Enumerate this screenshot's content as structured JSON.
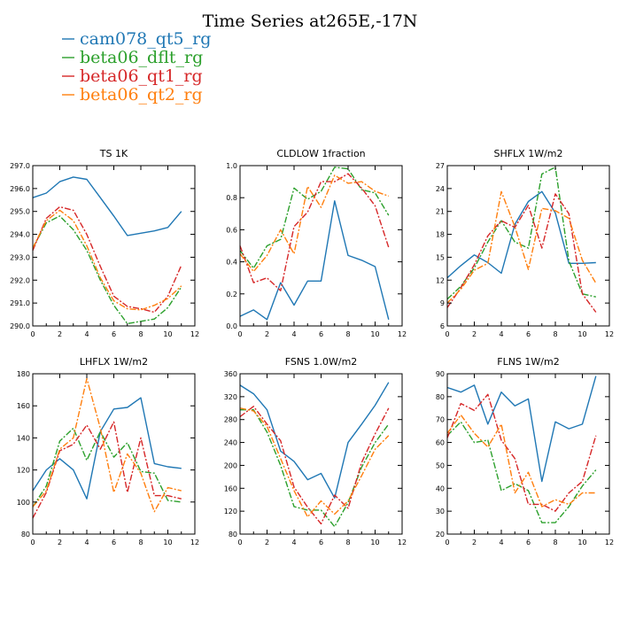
{
  "title": "Time Series at265E,-17N",
  "legend": [
    {
      "name": "cam078_qt5_rg",
      "color": "#1f77b4",
      "dash": "solid"
    },
    {
      "name": "beta06_dflt_rg",
      "color": "#2ca02c",
      "dash": "dashdot"
    },
    {
      "name": "beta06_qt1_rg",
      "color": "#d62728",
      "dash": "dashdot"
    },
    {
      "name": "beta06_qt2_rg",
      "color": "#ff7f0e",
      "dash": "dashdot"
    }
  ],
  "chart_data": [
    {
      "type": "line",
      "title": "TS   1K",
      "x": [
        0,
        1,
        2,
        3,
        4,
        5,
        6,
        7,
        8,
        9,
        10,
        11
      ],
      "xlim": [
        0,
        12
      ],
      "xticks": [
        "0",
        "2",
        "4",
        "6",
        "8",
        "10",
        "12"
      ],
      "ylim": [
        290,
        297
      ],
      "yticks": [
        "290.0",
        "291.0",
        "292.0",
        "293.0",
        "294.0",
        "295.0",
        "296.0",
        "297.0"
      ],
      "series": [
        {
          "name": "cam078_qt5_rg",
          "values": [
            295.6,
            295.8,
            296.3,
            296.5,
            296.4,
            295.6,
            294.8,
            293.95,
            294.05,
            294.15,
            294.3,
            295.0
          ]
        },
        {
          "name": "beta06_dflt_rg",
          "values": [
            293.4,
            294.5,
            294.8,
            294.2,
            293.3,
            292.0,
            290.9,
            290.1,
            290.2,
            290.3,
            290.8,
            291.7
          ]
        },
        {
          "name": "beta06_qt1_rg",
          "values": [
            293.3,
            294.7,
            295.2,
            295.05,
            294.0,
            292.6,
            291.3,
            290.85,
            290.75,
            290.6,
            291.3,
            292.65
          ]
        },
        {
          "name": "beta06_qt2_rg",
          "values": [
            293.4,
            294.6,
            295.05,
            294.6,
            293.5,
            292.1,
            291.1,
            290.75,
            290.7,
            290.9,
            291.2,
            291.75
          ]
        }
      ]
    },
    {
      "type": "line",
      "title": "CLDLOW   1fraction",
      "x": [
        0,
        1,
        2,
        3,
        4,
        5,
        6,
        7,
        8,
        9,
        10,
        11
      ],
      "xlim": [
        0,
        12
      ],
      "xticks": [
        "0",
        "2",
        "4",
        "6",
        "8",
        "10",
        "12"
      ],
      "ylim": [
        0,
        1
      ],
      "yticks": [
        "0.0",
        "0.2",
        "0.4",
        "0.6",
        "0.8",
        "1.0"
      ],
      "series": [
        {
          "name": "cam078_qt5_rg",
          "values": [
            0.06,
            0.1,
            0.04,
            0.27,
            0.13,
            0.28,
            0.28,
            0.78,
            0.44,
            0.41,
            0.37,
            0.04
          ]
        },
        {
          "name": "beta06_dflt_rg",
          "values": [
            0.47,
            0.36,
            0.5,
            0.54,
            0.86,
            0.79,
            0.84,
            0.99,
            0.98,
            0.85,
            0.83,
            0.69
          ]
        },
        {
          "name": "beta06_qt1_rg",
          "values": [
            0.5,
            0.27,
            0.3,
            0.22,
            0.62,
            0.71,
            0.9,
            0.9,
            0.95,
            0.86,
            0.75,
            0.49
          ]
        },
        {
          "name": "beta06_qt2_rg",
          "values": [
            0.45,
            0.34,
            0.44,
            0.6,
            0.45,
            0.87,
            0.74,
            0.94,
            0.89,
            0.9,
            0.84,
            0.81
          ]
        }
      ]
    },
    {
      "type": "line",
      "title": "SHFLX   1W/m2",
      "x": [
        0,
        1,
        2,
        3,
        4,
        5,
        6,
        7,
        8,
        9,
        10,
        11
      ],
      "xlim": [
        0,
        12
      ],
      "xticks": [
        "0",
        "2",
        "4",
        "6",
        "8",
        "10",
        "12"
      ],
      "ylim": [
        6,
        27
      ],
      "yticks": [
        "6",
        "9",
        "12",
        "15",
        "18",
        "21",
        "24",
        "27"
      ],
      "series": [
        {
          "name": "cam078_qt5_rg",
          "values": [
            12.3,
            13.9,
            15.3,
            14.3,
            12.9,
            19.3,
            22.3,
            23.6,
            20.8,
            14.2,
            14.2,
            14.3
          ]
        },
        {
          "name": "beta06_dflt_rg",
          "values": [
            9.5,
            11.2,
            13.6,
            17.0,
            19.8,
            17.0,
            16.2,
            25.9,
            26.8,
            14.5,
            10.2,
            9.8
          ]
        },
        {
          "name": "beta06_qt1_rg",
          "values": [
            8.4,
            11.0,
            14.0,
            17.8,
            19.8,
            18.9,
            21.8,
            16.2,
            23.3,
            20.7,
            10.2,
            7.8
          ]
        },
        {
          "name": "beta06_qt2_rg",
          "values": [
            9.0,
            10.8,
            13.3,
            14.2,
            23.6,
            19.0,
            13.4,
            21.4,
            21.1,
            20.1,
            14.6,
            11.6
          ]
        }
      ]
    },
    {
      "type": "line",
      "title": "LHFLX   1W/m2",
      "x": [
        0,
        1,
        2,
        3,
        4,
        5,
        6,
        7,
        8,
        9,
        10,
        11
      ],
      "xlim": [
        0,
        12
      ],
      "xticks": [
        "0",
        "2",
        "4",
        "6",
        "8",
        "10",
        "12"
      ],
      "ylim": [
        80,
        180
      ],
      "yticks": [
        "80",
        "100",
        "120",
        "140",
        "160",
        "180"
      ],
      "series": [
        {
          "name": "cam078_qt5_rg",
          "values": [
            107,
            120,
            127,
            120,
            102,
            144,
            158,
            159,
            165,
            124,
            122,
            121
          ]
        },
        {
          "name": "beta06_dflt_rg",
          "values": [
            97,
            110,
            138,
            146,
            126,
            144,
            128,
            137,
            119,
            118,
            101,
            100
          ]
        },
        {
          "name": "beta06_qt1_rg",
          "values": [
            90,
            106,
            132,
            136,
            148,
            133,
            150,
            106,
            140,
            104,
            104,
            102
          ]
        },
        {
          "name": "beta06_qt2_rg",
          "values": [
            97,
            107,
            133,
            140,
            177,
            146,
            106,
            130,
            118,
            94,
            109,
            107
          ]
        }
      ]
    },
    {
      "type": "line",
      "title": "FSNS   1.0W/m2",
      "x": [
        0,
        1,
        2,
        3,
        4,
        5,
        6,
        7,
        8,
        9,
        10,
        11
      ],
      "xlim": [
        0,
        12
      ],
      "xticks": [
        "0",
        "2",
        "4",
        "6",
        "8",
        "10",
        "12"
      ],
      "ylim": [
        80,
        360
      ],
      "yticks": [
        "80",
        "120",
        "160",
        "200",
        "240",
        "280",
        "320",
        "360"
      ],
      "series": [
        {
          "name": "cam078_qt5_rg",
          "values": [
            340,
            325,
            297,
            225,
            207,
            175,
            186,
            143,
            240,
            272,
            305,
            345
          ]
        },
        {
          "name": "beta06_dflt_rg",
          "values": [
            297,
            297,
            258,
            200,
            128,
            122,
            122,
            93,
            135,
            197,
            240,
            272
          ]
        },
        {
          "name": "beta06_qt1_rg",
          "values": [
            285,
            303,
            272,
            243,
            162,
            127,
            98,
            148,
            125,
            205,
            255,
            300
          ]
        },
        {
          "name": "beta06_qt2_rg",
          "values": [
            300,
            295,
            268,
            212,
            156,
            110,
            138,
            115,
            138,
            182,
            228,
            252
          ]
        }
      ]
    },
    {
      "type": "line",
      "title": "FLNS   1W/m2",
      "x": [
        0,
        1,
        2,
        3,
        4,
        5,
        6,
        7,
        8,
        9,
        10,
        11
      ],
      "xlim": [
        0,
        12
      ],
      "xticks": [
        "0",
        "2",
        "4",
        "6",
        "8",
        "10",
        "12"
      ],
      "ylim": [
        20,
        90
      ],
      "yticks": [
        "20",
        "30",
        "40",
        "50",
        "60",
        "70",
        "80",
        "90"
      ],
      "series": [
        {
          "name": "cam078_qt5_rg",
          "values": [
            84,
            82,
            85,
            68,
            82,
            76,
            79,
            43,
            69,
            66,
            68,
            89
          ]
        },
        {
          "name": "beta06_dflt_rg",
          "values": [
            63,
            69,
            60,
            61,
            39,
            42,
            39,
            25,
            25,
            32,
            41,
            48
          ]
        },
        {
          "name": "beta06_qt1_rg",
          "values": [
            62,
            77,
            74,
            81,
            61,
            53,
            33,
            33,
            30,
            38,
            43,
            63
          ]
        },
        {
          "name": "beta06_qt2_rg",
          "values": [
            64,
            72,
            64,
            58,
            68,
            38,
            47,
            32,
            35,
            33,
            38,
            38
          ]
        }
      ]
    }
  ]
}
